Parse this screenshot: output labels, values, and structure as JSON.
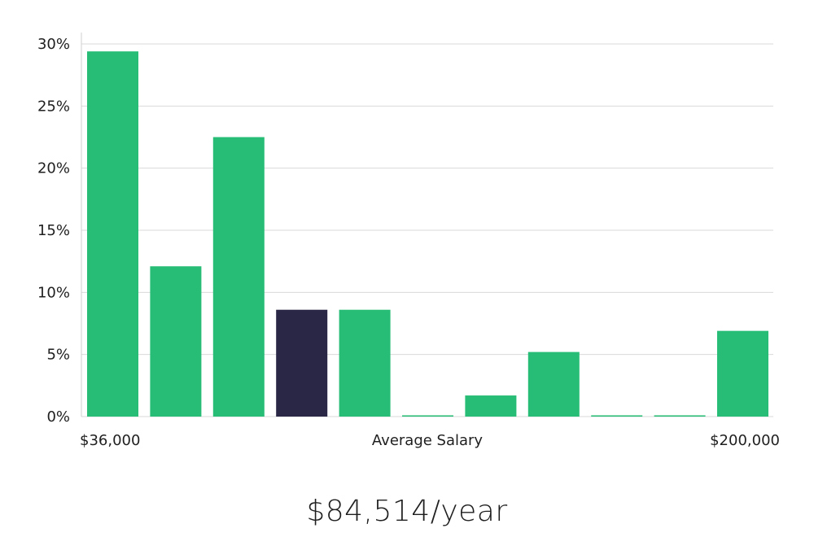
{
  "chart_data": {
    "type": "bar",
    "values": [
      29.4,
      12.1,
      22.5,
      8.6,
      8.6,
      0.1,
      1.7,
      5.2,
      0.1,
      0.1,
      6.9
    ],
    "highlight_index": 3,
    "ylim": [
      0,
      30
    ],
    "yticks": [
      0,
      5,
      10,
      15,
      20,
      25,
      30
    ],
    "ytick_labels": [
      "0%",
      "5%",
      "10%",
      "15%",
      "20%",
      "25%",
      "30%"
    ],
    "x_min_label": "$36,000",
    "x_max_label": "$200,000",
    "xlabel": "Average Salary",
    "grid": true,
    "colors": {
      "bar": "#27bd76",
      "highlight": "#2a2645",
      "grid": "#d9d9d9",
      "axis": "#cfcfcf"
    }
  },
  "salary": {
    "value": "$84,514/year"
  }
}
